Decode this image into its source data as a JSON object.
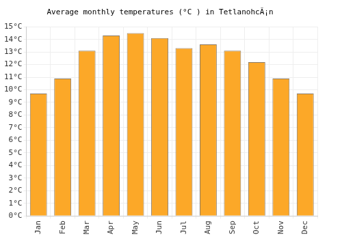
{
  "chart_data": {
    "type": "bar",
    "title": "Average monthly temperatures (°C ) in TetlanohcÃ¡n",
    "categories": [
      "Jan",
      "Feb",
      "Mar",
      "Apr",
      "May",
      "Jun",
      "Jul",
      "Aug",
      "Sep",
      "Oct",
      "Nov",
      "Dec"
    ],
    "values": [
      9.7,
      10.9,
      13.1,
      14.3,
      14.5,
      14.1,
      13.3,
      13.6,
      13.1,
      12.2,
      10.9,
      9.7
    ],
    "color": "#fca828",
    "ylim": [
      0,
      15
    ],
    "yticks": [
      {
        "value": 0,
        "label": "0°C"
      },
      {
        "value": 1,
        "label": "1°C"
      },
      {
        "value": 2,
        "label": "2°C"
      },
      {
        "value": 3,
        "label": "3°C"
      },
      {
        "value": 4,
        "label": "4°C"
      },
      {
        "value": 5,
        "label": "5°C"
      },
      {
        "value": 6,
        "label": "6°C"
      },
      {
        "value": 7,
        "label": "7°C"
      },
      {
        "value": 8,
        "label": "8°C"
      },
      {
        "value": 9,
        "label": "9°C"
      },
      {
        "value": 10,
        "label": "10°C"
      },
      {
        "value": 11,
        "label": "11°C"
      },
      {
        "value": 12,
        "label": "12°C"
      },
      {
        "value": 13,
        "label": "13°C"
      },
      {
        "value": 14,
        "label": "14°C"
      },
      {
        "value": 15,
        "label": "15°C"
      }
    ],
    "grid": true
  }
}
